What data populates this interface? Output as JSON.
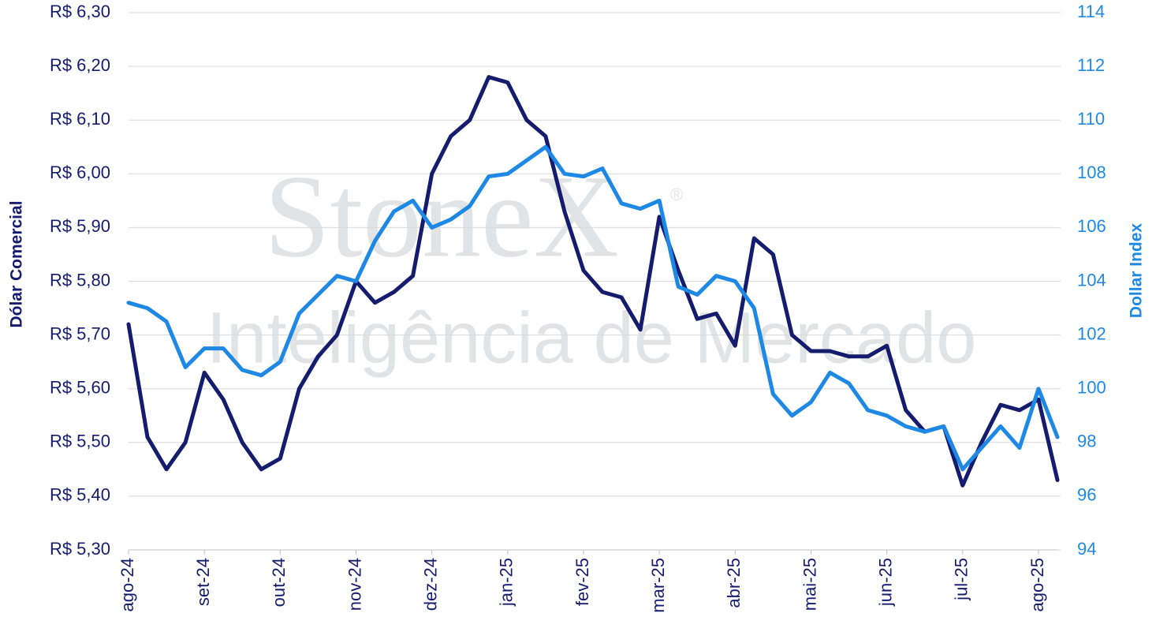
{
  "chart_data": {
    "type": "line",
    "watermark": {
      "brand": "StoneX",
      "mark": "®",
      "subtitle": "Inteligência de Mercado"
    },
    "y_label": "Dólar Comercial",
    "y2_label": "Dollar Index",
    "categories": [
      "ago-24",
      null,
      null,
      null,
      "set-24",
      null,
      null,
      null,
      "out-24",
      null,
      null,
      null,
      "nov-24",
      null,
      null,
      null,
      "dez-24",
      null,
      null,
      null,
      "jan-25",
      null,
      null,
      null,
      "fev-25",
      null,
      null,
      null,
      "mar-25",
      null,
      null,
      null,
      "abr-25",
      null,
      null,
      null,
      "mai-25",
      null,
      null,
      null,
      "jun-25",
      null,
      null,
      null,
      "jul-25",
      null,
      null,
      null,
      "ago-25",
      null
    ],
    "series": [
      {
        "name": "Dólar Comercial",
        "color": "#151c6e",
        "axis": "y",
        "values": [
          5.72,
          5.51,
          5.45,
          5.5,
          5.63,
          5.58,
          5.5,
          5.45,
          5.47,
          5.6,
          5.66,
          5.7,
          5.8,
          5.76,
          5.78,
          5.81,
          6.0,
          6.07,
          6.1,
          6.18,
          6.17,
          6.1,
          6.07,
          5.93,
          5.82,
          5.78,
          5.77,
          5.71,
          5.92,
          5.82,
          5.73,
          5.74,
          5.68,
          5.88,
          5.85,
          5.7,
          5.67,
          5.67,
          5.66,
          5.66,
          5.68,
          5.56,
          5.52,
          5.53,
          5.42,
          5.5,
          5.57,
          5.56,
          5.58,
          5.43
        ]
      },
      {
        "name": "Dollar Index",
        "color": "#1e88e5",
        "axis": "y2",
        "values": [
          103.2,
          103,
          102.5,
          100.8,
          101.5,
          101.5,
          100.7,
          100.5,
          101,
          102.8,
          103.5,
          104.2,
          104,
          105.5,
          106.6,
          107,
          106,
          106.3,
          106.8,
          107.9,
          108,
          108.5,
          109,
          108,
          107.9,
          108.2,
          106.9,
          106.7,
          107,
          103.8,
          103.5,
          104.2,
          104,
          103,
          99.8,
          99,
          99.5,
          100.6,
          100.2,
          99.2,
          99,
          98.6,
          98.4,
          98.6,
          97,
          97.8,
          98.6,
          97.8,
          100,
          98.2
        ]
      }
    ],
    "ylim": [
      5.3,
      6.3
    ],
    "yticks": [
      {
        "value": 5.3,
        "label": "R$ 5,30"
      },
      {
        "value": 5.4,
        "label": "R$ 5,40"
      },
      {
        "value": 5.5,
        "label": "R$ 5,50"
      },
      {
        "value": 5.6,
        "label": "R$ 5,60"
      },
      {
        "value": 5.7,
        "label": "R$ 5,70"
      },
      {
        "value": 5.8,
        "label": "R$ 5,80"
      },
      {
        "value": 5.9,
        "label": "R$ 5,90"
      },
      {
        "value": 6.0,
        "label": "R$ 6,00"
      },
      {
        "value": 6.1,
        "label": "R$ 6,10"
      },
      {
        "value": 6.2,
        "label": "R$ 6,20"
      },
      {
        "value": 6.3,
        "label": "R$ 6,30"
      }
    ],
    "y2lim": [
      94,
      114
    ],
    "y2ticks": [
      94,
      96,
      98,
      100,
      102,
      104,
      106,
      108,
      110,
      112,
      114
    ],
    "grid": true
  }
}
